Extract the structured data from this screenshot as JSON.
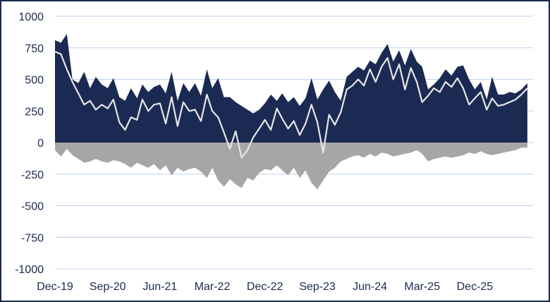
{
  "chart_data": {
    "type": "area",
    "title": "",
    "xlabel": "",
    "ylabel": "",
    "ylim": [
      -1000,
      1000
    ],
    "yticks": [
      1000,
      750,
      500,
      250,
      0,
      -250,
      -500,
      -750,
      -1000
    ],
    "ytick_labels": [
      "1000",
      "750",
      "500",
      "250",
      "0",
      "-250",
      "-500",
      "-750",
      "-1000"
    ],
    "xlim": [
      "2019-12-01",
      "2026-10-01"
    ],
    "xtick_labels": [
      "Dec-19",
      "Sep-20",
      "Jun-21",
      "Mar-22",
      "Dec-22",
      "Sep-23",
      "Jun-24",
      "Mar-25",
      "Dec-25"
    ],
    "xtick_dates": [
      "2019-12-01",
      "2020-09-01",
      "2021-06-01",
      "2022-03-01",
      "2022-12-01",
      "2023-09-01",
      "2024-06-01",
      "2025-03-01",
      "2025-12-01"
    ],
    "grid": "horizontal",
    "legend": "none",
    "colors": {
      "positive": "#1b2a52",
      "negative": "#a6a6a6",
      "line": "#e6e6e6",
      "grid": "#bcd3ec",
      "text": "#1b2a52"
    },
    "series": [
      {
        "type": "area",
        "color": "#1b2a52",
        "x": [
          "2019-12-01",
          "2020-01-01",
          "2020-02-01",
          "2020-03-01",
          "2020-04-01",
          "2020-05-01",
          "2020-06-01",
          "2020-07-01",
          "2020-08-01",
          "2020-09-01",
          "2020-10-01",
          "2020-11-01",
          "2020-12-01",
          "2021-01-01",
          "2021-02-01",
          "2021-03-01",
          "2021-04-01",
          "2021-05-01",
          "2021-06-01",
          "2021-07-01",
          "2021-08-01",
          "2021-09-01",
          "2021-10-01",
          "2021-11-01",
          "2021-12-01",
          "2022-01-01",
          "2022-02-01",
          "2022-03-01",
          "2022-04-01",
          "2022-05-01",
          "2022-06-01",
          "2022-07-01",
          "2022-08-01",
          "2022-09-01",
          "2022-10-01",
          "2022-11-01",
          "2022-12-01",
          "2023-01-01",
          "2023-02-01",
          "2023-03-01",
          "2023-04-01",
          "2023-05-01",
          "2023-06-01",
          "2023-07-01",
          "2023-08-01",
          "2023-09-01",
          "2023-10-01",
          "2023-11-01",
          "2023-12-01",
          "2024-01-01",
          "2024-02-01",
          "2024-03-01",
          "2024-04-01",
          "2024-05-01",
          "2024-06-01",
          "2024-07-01",
          "2024-08-01",
          "2024-09-01",
          "2024-10-01",
          "2024-11-01",
          "2024-12-01",
          "2025-01-01",
          "2025-02-01",
          "2025-03-01",
          "2025-04-01",
          "2025-05-01",
          "2025-06-01",
          "2025-07-01",
          "2025-08-01",
          "2025-09-01",
          "2025-10-01",
          "2025-11-01",
          "2025-12-01",
          "2026-01-01",
          "2026-02-01",
          "2026-03-01",
          "2026-04-01",
          "2026-05-01",
          "2026-06-01",
          "2026-07-01",
          "2026-08-01",
          "2026-09-01"
        ],
        "values": [
          810,
          790,
          860,
          500,
          470,
          560,
          430,
          520,
          460,
          430,
          510,
          360,
          330,
          430,
          350,
          460,
          400,
          440,
          460,
          390,
          560,
          330,
          470,
          400,
          470,
          370,
          580,
          430,
          510,
          360,
          360,
          320,
          290,
          260,
          230,
          260,
          310,
          380,
          330,
          390,
          320,
          360,
          290,
          350,
          510,
          340,
          420,
          490,
          400,
          330,
          520,
          560,
          600,
          570,
          650,
          620,
          710,
          780,
          640,
          730,
          610,
          740,
          640,
          600,
          420,
          460,
          510,
          580,
          530,
          600,
          610,
          500,
          420,
          480,
          340,
          520,
          380,
          380,
          400,
          390,
          420,
          470
        ]
      },
      {
        "type": "area",
        "color": "#a6a6a6",
        "x": [
          "2019-12-01",
          "2020-01-01",
          "2020-02-01",
          "2020-03-01",
          "2020-04-01",
          "2020-05-01",
          "2020-06-01",
          "2020-07-01",
          "2020-08-01",
          "2020-09-01",
          "2020-10-01",
          "2020-11-01",
          "2020-12-01",
          "2021-01-01",
          "2021-02-01",
          "2021-03-01",
          "2021-04-01",
          "2021-05-01",
          "2021-06-01",
          "2021-07-01",
          "2021-08-01",
          "2021-09-01",
          "2021-10-01",
          "2021-11-01",
          "2021-12-01",
          "2022-01-01",
          "2022-02-01",
          "2022-03-01",
          "2022-04-01",
          "2022-05-01",
          "2022-06-01",
          "2022-07-01",
          "2022-08-01",
          "2022-09-01",
          "2022-10-01",
          "2022-11-01",
          "2022-12-01",
          "2023-01-01",
          "2023-02-01",
          "2023-03-01",
          "2023-04-01",
          "2023-05-01",
          "2023-06-01",
          "2023-07-01",
          "2023-08-01",
          "2023-09-01",
          "2023-10-01",
          "2023-11-01",
          "2023-12-01",
          "2024-01-01",
          "2024-02-01",
          "2024-03-01",
          "2024-04-01",
          "2024-05-01",
          "2024-06-01",
          "2024-07-01",
          "2024-08-01",
          "2024-09-01",
          "2024-10-01",
          "2024-11-01",
          "2024-12-01",
          "2025-01-01",
          "2025-02-01",
          "2025-03-01",
          "2025-04-01",
          "2025-05-01",
          "2025-06-01",
          "2025-07-01",
          "2025-08-01",
          "2025-09-01",
          "2025-10-01",
          "2025-11-01",
          "2025-12-01",
          "2026-01-01",
          "2026-02-01",
          "2026-03-01",
          "2026-04-01",
          "2026-05-01",
          "2026-06-01",
          "2026-07-01",
          "2026-08-01",
          "2026-09-01"
        ],
        "values": [
          -60,
          -110,
          -50,
          -100,
          -130,
          -160,
          -150,
          -130,
          -150,
          -160,
          -140,
          -150,
          -170,
          -200,
          -160,
          -180,
          -200,
          -170,
          -220,
          -180,
          -260,
          -200,
          -230,
          -210,
          -200,
          -230,
          -280,
          -200,
          -300,
          -350,
          -290,
          -330,
          -360,
          -280,
          -300,
          -240,
          -210,
          -220,
          -180,
          -220,
          -260,
          -200,
          -280,
          -220,
          -320,
          -370,
          -300,
          -230,
          -200,
          -150,
          -130,
          -110,
          -100,
          -120,
          -90,
          -110,
          -80,
          -90,
          -110,
          -100,
          -90,
          -80,
          -60,
          -90,
          -150,
          -130,
          -120,
          -110,
          -120,
          -110,
          -100,
          -80,
          -90,
          -70,
          -90,
          -100,
          -90,
          -80,
          -70,
          -60,
          -40,
          -40
        ]
      },
      {
        "type": "line",
        "color": "#e6e6e6",
        "x": [
          "2019-12-01",
          "2020-01-01",
          "2020-02-01",
          "2020-03-01",
          "2020-04-01",
          "2020-05-01",
          "2020-06-01",
          "2020-07-01",
          "2020-08-01",
          "2020-09-01",
          "2020-10-01",
          "2020-11-01",
          "2020-12-01",
          "2021-01-01",
          "2021-02-01",
          "2021-03-01",
          "2021-04-01",
          "2021-05-01",
          "2021-06-01",
          "2021-07-01",
          "2021-08-01",
          "2021-09-01",
          "2021-10-01",
          "2021-11-01",
          "2021-12-01",
          "2022-01-01",
          "2022-02-01",
          "2022-03-01",
          "2022-04-01",
          "2022-05-01",
          "2022-06-01",
          "2022-07-01",
          "2022-08-01",
          "2022-09-01",
          "2022-10-01",
          "2022-11-01",
          "2022-12-01",
          "2023-01-01",
          "2023-02-01",
          "2023-03-01",
          "2023-04-01",
          "2023-05-01",
          "2023-06-01",
          "2023-07-01",
          "2023-08-01",
          "2023-09-01",
          "2023-10-01",
          "2023-11-01",
          "2023-12-01",
          "2024-01-01",
          "2024-02-01",
          "2024-03-01",
          "2024-04-01",
          "2024-05-01",
          "2024-06-01",
          "2024-07-01",
          "2024-08-01",
          "2024-09-01",
          "2024-10-01",
          "2024-11-01",
          "2024-12-01",
          "2025-01-01",
          "2025-02-01",
          "2025-03-01",
          "2025-04-01",
          "2025-05-01",
          "2025-06-01",
          "2025-07-01",
          "2025-08-01",
          "2025-09-01",
          "2025-10-01",
          "2025-11-01",
          "2025-12-01",
          "2026-01-01",
          "2026-02-01",
          "2026-03-01",
          "2026-04-01",
          "2026-05-01",
          "2026-06-01",
          "2026-07-01",
          "2026-08-01",
          "2026-09-01"
        ],
        "values": [
          720,
          700,
          580,
          480,
          390,
          300,
          330,
          260,
          300,
          270,
          340,
          160,
          100,
          200,
          180,
          340,
          250,
          300,
          310,
          150,
          360,
          130,
          320,
          250,
          260,
          170,
          380,
          250,
          200,
          80,
          -50,
          90,
          -120,
          -60,
          40,
          110,
          180,
          100,
          270,
          190,
          110,
          170,
          60,
          150,
          300,
          160,
          -80,
          220,
          140,
          240,
          420,
          450,
          500,
          450,
          580,
          480,
          600,
          670,
          500,
          620,
          420,
          590,
          480,
          320,
          370,
          430,
          400,
          480,
          440,
          510,
          430,
          300,
          350,
          400,
          260,
          350,
          290,
          300,
          320,
          340,
          380,
          430
        ]
      }
    ]
  }
}
